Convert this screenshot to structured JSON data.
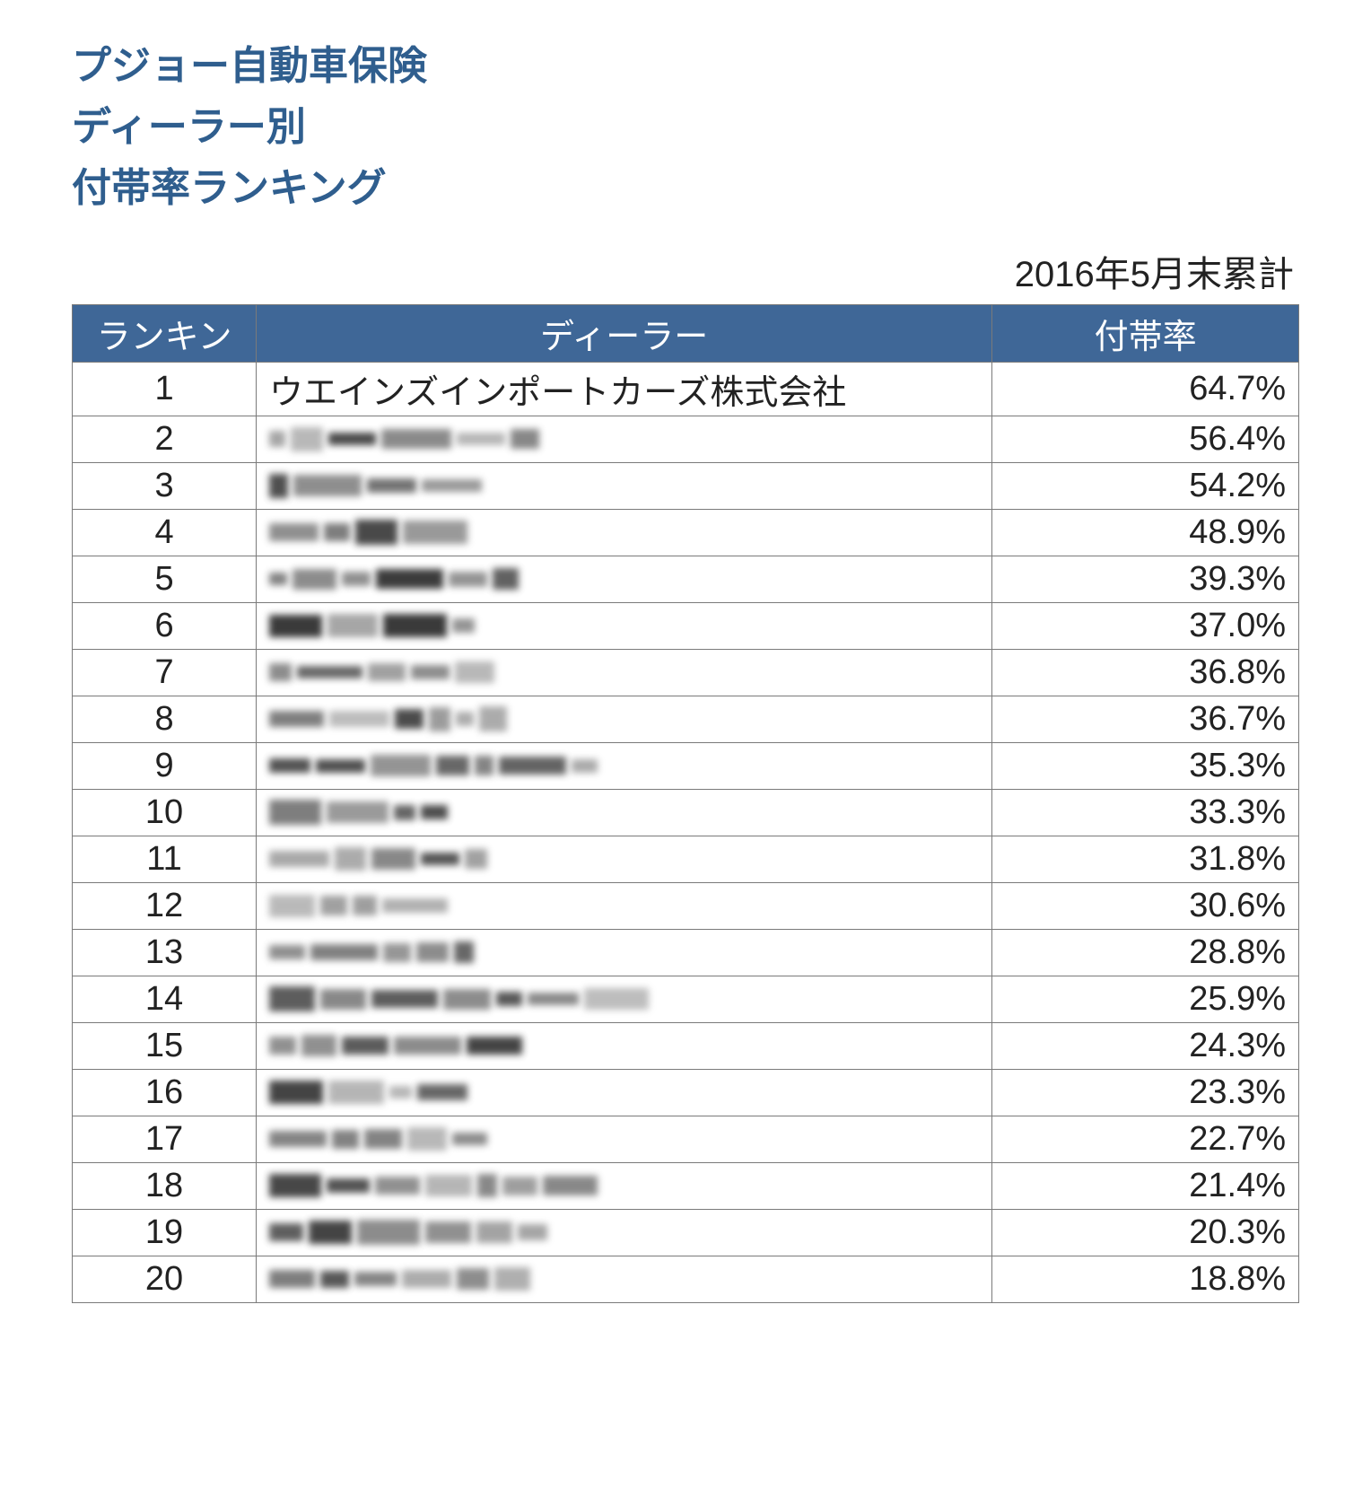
{
  "colors": {
    "title": "#2f5e8e",
    "header_bg": "#3f6797",
    "border": "#7a7a7a",
    "text": "#222222",
    "background": "#ffffff"
  },
  "title": {
    "line1": "プジョー自動車保険",
    "line2": "ディーラー別",
    "line3": "付帯率ランキング"
  },
  "period_label": "2016年5月末累計",
  "columns": {
    "rank": "ランキン",
    "dealer": "ディーラー",
    "rate": "付帯率"
  },
  "rows": [
    {
      "rank": "1",
      "dealer": "ウエインズインポートカーズ株式会社",
      "dealer_redacted": false,
      "rate": "64.7%"
    },
    {
      "rank": "2",
      "dealer": "",
      "dealer_redacted": true,
      "rate": "56.4%"
    },
    {
      "rank": "3",
      "dealer": "",
      "dealer_redacted": true,
      "rate": "54.2%"
    },
    {
      "rank": "4",
      "dealer": "",
      "dealer_redacted": true,
      "rate": "48.9%"
    },
    {
      "rank": "5",
      "dealer": "",
      "dealer_redacted": true,
      "rate": "39.3%"
    },
    {
      "rank": "6",
      "dealer": "",
      "dealer_redacted": true,
      "rate": "37.0%"
    },
    {
      "rank": "7",
      "dealer": "",
      "dealer_redacted": true,
      "rate": "36.8%"
    },
    {
      "rank": "8",
      "dealer": "",
      "dealer_redacted": true,
      "rate": "36.7%"
    },
    {
      "rank": "9",
      "dealer": "",
      "dealer_redacted": true,
      "rate": "35.3%"
    },
    {
      "rank": "10",
      "dealer": "",
      "dealer_redacted": true,
      "rate": "33.3%"
    },
    {
      "rank": "11",
      "dealer": "",
      "dealer_redacted": true,
      "rate": "31.8%"
    },
    {
      "rank": "12",
      "dealer": "",
      "dealer_redacted": true,
      "rate": "30.6%"
    },
    {
      "rank": "13",
      "dealer": "",
      "dealer_redacted": true,
      "rate": "28.8%"
    },
    {
      "rank": "14",
      "dealer": "",
      "dealer_redacted": true,
      "rate": "25.9%"
    },
    {
      "rank": "15",
      "dealer": "",
      "dealer_redacted": true,
      "rate": "24.3%"
    },
    {
      "rank": "16",
      "dealer": "",
      "dealer_redacted": true,
      "rate": "23.3%"
    },
    {
      "rank": "17",
      "dealer": "",
      "dealer_redacted": true,
      "rate": "22.7%"
    },
    {
      "rank": "18",
      "dealer": "",
      "dealer_redacted": true,
      "rate": "21.4%"
    },
    {
      "rank": "19",
      "dealer": "",
      "dealer_redacted": true,
      "rate": "20.3%"
    },
    {
      "rank": "20",
      "dealer": "",
      "dealer_redacted": true,
      "rate": "18.8%"
    }
  ]
}
